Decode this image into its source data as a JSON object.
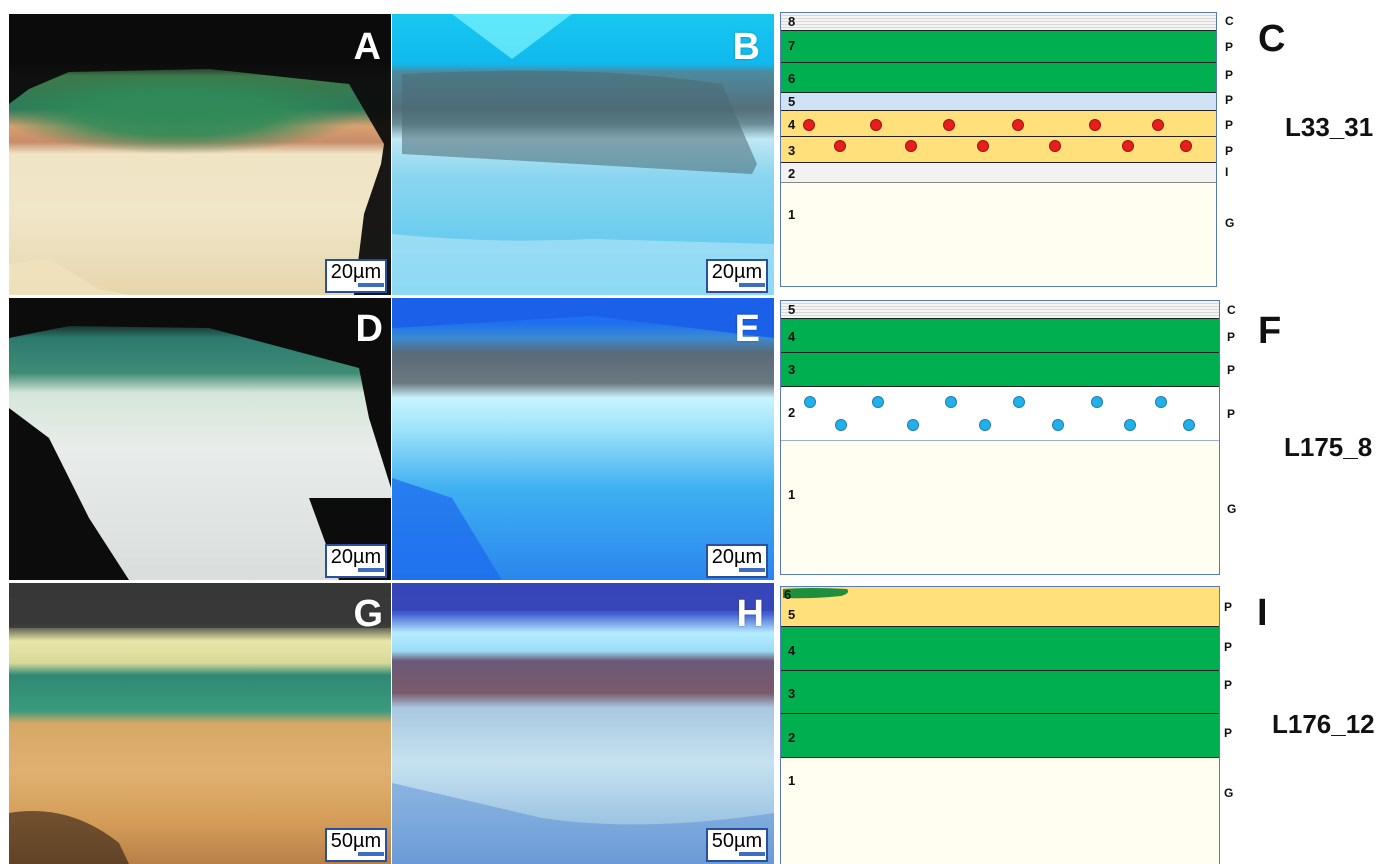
{
  "photos": [
    {
      "letter": "A",
      "scale": "20µm"
    },
    {
      "letter": "B",
      "scale": "20µm"
    },
    {
      "letter": "D",
      "scale": "20µm"
    },
    {
      "letter": "E",
      "scale": "20µm"
    },
    {
      "letter": "G",
      "scale": "50µm"
    },
    {
      "letter": "H",
      "scale": "50µm"
    }
  ],
  "stratigraphies": [
    {
      "letter": "C",
      "sample": "L33_31",
      "layers": [
        {
          "num": "8",
          "type": "C",
          "color": "#e8e8e8"
        },
        {
          "num": "7",
          "type": "P",
          "color": "#00b050"
        },
        {
          "num": "6",
          "type": "P",
          "color": "#00b050"
        },
        {
          "num": "5",
          "type": "P",
          "color": "#cfe3f5"
        },
        {
          "num": "4",
          "type": "P",
          "color": "#ffe07a"
        },
        {
          "num": "3",
          "type": "P",
          "color": "#ffe07a"
        },
        {
          "num": "2",
          "type": "I",
          "color": "#f2f2f2"
        },
        {
          "num": "1",
          "type": "G",
          "color": "#fffef0"
        }
      ]
    },
    {
      "letter": "F",
      "sample": "L175_8",
      "layers": [
        {
          "num": "5",
          "type": "C",
          "color": "#e8e8e8"
        },
        {
          "num": "4",
          "type": "P",
          "color": "#00b050"
        },
        {
          "num": "3",
          "type": "P",
          "color": "#00b050"
        },
        {
          "num": "2",
          "type": "P",
          "color": "#ffffff"
        },
        {
          "num": "1",
          "type": "G",
          "color": "#fffef0"
        }
      ]
    },
    {
      "letter": "I",
      "sample": "L176_12",
      "layers": [
        {
          "num": "6",
          "type": "",
          "color": "#1f8f3c"
        },
        {
          "num": "5",
          "type": "P",
          "color": "#ffe07a"
        },
        {
          "num": "4",
          "type": "P",
          "color": "#00b050"
        },
        {
          "num": "3",
          "type": "P",
          "color": "#00b050"
        },
        {
          "num": "2",
          "type": "P",
          "color": "#00b050"
        },
        {
          "num": "1",
          "type": "G",
          "color": "#fffef0"
        }
      ]
    }
  ]
}
